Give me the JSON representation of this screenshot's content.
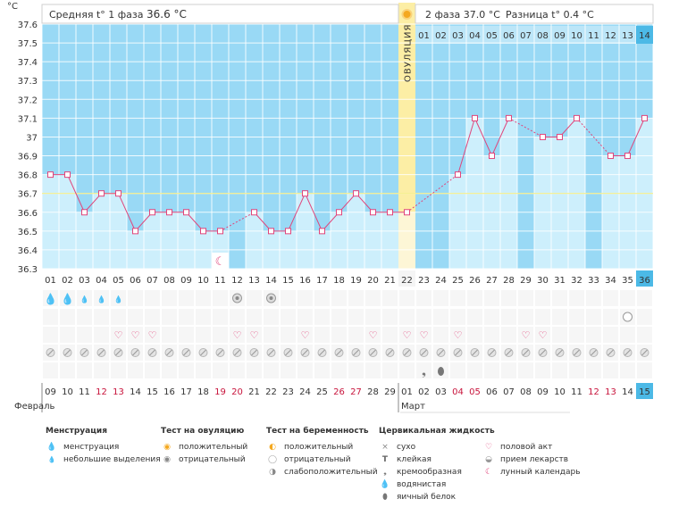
{
  "unit": "°C",
  "header": {
    "phase1": "Средняя t° 1 фаза",
    "phase1_value": "36.6 °C",
    "phase2": "2 фаза 37.0 °C",
    "diff": "Разница t° 0.4 °C"
  },
  "ovulation_label": "ОВУЛЯЦИЯ",
  "months": {
    "feb": "Февраль",
    "mar": "Март"
  },
  "chart_data": {
    "type": "line",
    "ylim": [
      36.3,
      37.6
    ],
    "yticks": [
      "36.3",
      "36.4",
      "36.5",
      "36.6",
      "36.7",
      "36.8",
      "36.9",
      "37",
      "37.1",
      "37.2",
      "37.3",
      "37.4",
      "37.5",
      "37.6"
    ],
    "coverline": 36.7,
    "ovulation_day": 22,
    "cycle_days": [
      "01",
      "02",
      "03",
      "04",
      "05",
      "06",
      "07",
      "08",
      "09",
      "10",
      "11",
      "12",
      "13",
      "14",
      "15",
      "16",
      "17",
      "18",
      "19",
      "20",
      "21",
      "22",
      "23",
      "24",
      "25",
      "26",
      "27",
      "28",
      "29",
      "30",
      "31",
      "32",
      "33",
      "34",
      "35",
      "36"
    ],
    "phase2_days": [
      "01",
      "02",
      "03",
      "04",
      "05",
      "06",
      "07",
      "08",
      "09",
      "10",
      "11",
      "12",
      "13",
      "14"
    ],
    "dates": [
      "09",
      "10",
      "11",
      "12",
      "13",
      "14",
      "15",
      "16",
      "17",
      "18",
      "19",
      "20",
      "21",
      "22",
      "23",
      "24",
      "25",
      "26",
      "27",
      "28",
      "29",
      "01",
      "02",
      "03",
      "04",
      "05",
      "06",
      "07",
      "08",
      "09",
      "10",
      "11",
      "12",
      "13",
      "14",
      "15"
    ],
    "red_dates": [
      3,
      4,
      10,
      11,
      17,
      18,
      24,
      25,
      32,
      33
    ],
    "temperatures": [
      36.8,
      36.8,
      36.6,
      36.7,
      36.7,
      36.5,
      36.6,
      36.6,
      36.6,
      36.5,
      36.5,
      null,
      36.6,
      36.5,
      36.5,
      36.7,
      36.5,
      36.6,
      36.7,
      36.6,
      36.6,
      36.6,
      null,
      null,
      36.8,
      37.1,
      36.9,
      37.1,
      null,
      37.0,
      37.0,
      37.1,
      null,
      36.9,
      36.9,
      37.1
    ]
  },
  "markers": {
    "menstruation_heavy": [
      1,
      2
    ],
    "menstruation_light": [
      3,
      4,
      5
    ],
    "moon_calendar": [
      11
    ],
    "ovulation_test_negative": [
      12,
      14
    ],
    "pregnancy_test_weak": [
      35
    ],
    "intercourse": [
      5,
      6,
      7,
      12,
      13,
      16,
      20,
      22,
      23,
      25,
      29,
      30
    ],
    "medication": [
      1,
      2,
      3,
      4,
      5,
      6,
      7,
      8,
      9,
      10,
      11,
      12,
      13,
      14,
      15,
      16,
      17,
      18,
      19,
      20,
      21,
      22,
      23,
      24,
      25,
      26,
      27,
      28,
      29,
      30,
      31,
      32,
      33,
      34,
      35,
      36
    ],
    "creamy_fluid": [
      23
    ],
    "watery_fluid": [
      24
    ]
  },
  "legend": {
    "menstruation": {
      "title": "Менструация",
      "items": [
        "менструация",
        "небольшие выделения"
      ]
    },
    "ovulation_test": {
      "title": "Тест на овуляцию",
      "items": [
        "положительный",
        "отрицательный"
      ]
    },
    "pregnancy_test": {
      "title": "Тест на беременность",
      "items": [
        "положительный",
        "отрицательный",
        "слабоположительный"
      ]
    },
    "cervical_fluid": {
      "title": "Цервикальная жидкость",
      "items": [
        "сухо",
        "клейкая",
        "кремообразная",
        "водянистая",
        "яичный белок"
      ]
    },
    "other": {
      "items": [
        "половой акт",
        "прием лекарств",
        "лунный календарь"
      ]
    }
  },
  "colors": {
    "sky": "#99d9f5",
    "bar": "#cdeffc",
    "line": "#e0457b",
    "ovulation": "#fceea5",
    "today": "#4cb9e6"
  }
}
